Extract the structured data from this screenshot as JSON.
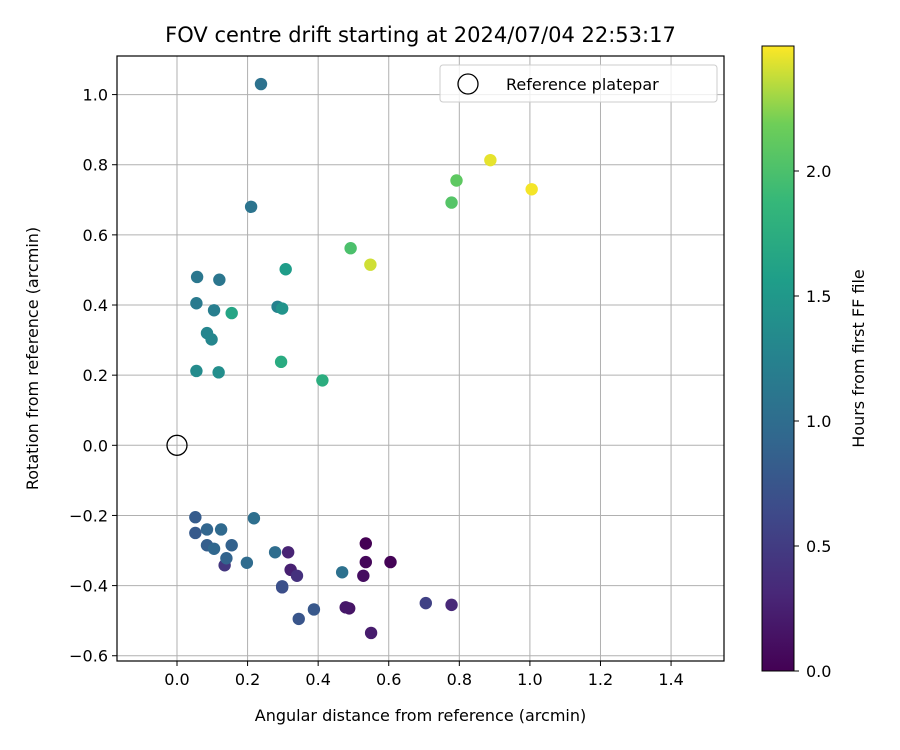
{
  "chart_data": {
    "type": "scatter",
    "title": "FOV centre drift starting at 2024/07/04 22:53:17",
    "xlabel": "Angular distance from reference (arcmin)",
    "ylabel": "Rotation from reference (arcmin)",
    "xlim": [
      -0.17,
      1.55
    ],
    "ylim": [
      -0.615,
      1.11
    ],
    "xticks": [
      0.0,
      0.2,
      0.4,
      0.6,
      0.8,
      1.0,
      1.2,
      1.4
    ],
    "xtick_labels": [
      "0.0",
      "0.2",
      "0.4",
      "0.6",
      "0.8",
      "1.0",
      "1.2",
      "1.4"
    ],
    "yticks": [
      -0.6,
      -0.4,
      -0.2,
      0.0,
      0.2,
      0.4,
      0.6,
      0.8,
      1.0
    ],
    "ytick_labels": [
      "−0.6",
      "−0.4",
      "−0.2",
      "0.0",
      "0.2",
      "0.4",
      "0.6",
      "0.8",
      "1.0"
    ],
    "grid": true,
    "colorbar": {
      "label": "Hours from first FF file",
      "colormap": "viridis",
      "range": [
        0.0,
        2.5
      ],
      "ticks": [
        0.0,
        0.5,
        1.0,
        1.5,
        2.0
      ],
      "tick_labels": [
        "0.0",
        "0.5",
        "1.0",
        "1.5",
        "2.0"
      ]
    },
    "reference": {
      "name": "Reference platepar",
      "x": 0.0,
      "y": 0.0
    },
    "legend": {
      "placement": "top-right",
      "entries": [
        "Reference platepar"
      ]
    },
    "points": [
      {
        "x": 0.535,
        "y": -0.28,
        "c": 0.0
      },
      {
        "x": 0.605,
        "y": -0.333,
        "c": 0.02
      },
      {
        "x": 0.535,
        "y": -0.333,
        "c": 0.05
      },
      {
        "x": 0.528,
        "y": -0.372,
        "c": 0.1
      },
      {
        "x": 0.488,
        "y": -0.465,
        "c": 0.15
      },
      {
        "x": 0.478,
        "y": -0.462,
        "c": 0.18
      },
      {
        "x": 0.55,
        "y": -0.535,
        "c": 0.22
      },
      {
        "x": 0.322,
        "y": -0.355,
        "c": 0.25
      },
      {
        "x": 0.315,
        "y": -0.305,
        "c": 0.28
      },
      {
        "x": 0.778,
        "y": -0.455,
        "c": 0.32
      },
      {
        "x": 0.34,
        "y": -0.372,
        "c": 0.4
      },
      {
        "x": 0.135,
        "y": -0.342,
        "c": 0.45
      },
      {
        "x": 0.705,
        "y": -0.45,
        "c": 0.55
      },
      {
        "x": 0.298,
        "y": -0.405,
        "c": 0.65
      },
      {
        "x": 0.298,
        "y": -0.402,
        "c": 0.7
      },
      {
        "x": 0.345,
        "y": -0.495,
        "c": 0.75
      },
      {
        "x": 0.388,
        "y": -0.468,
        "c": 0.78
      },
      {
        "x": 0.052,
        "y": -0.25,
        "c": 0.8
      },
      {
        "x": 0.052,
        "y": -0.205,
        "c": 0.82
      },
      {
        "x": 0.085,
        "y": -0.285,
        "c": 0.85
      },
      {
        "x": 0.155,
        "y": -0.285,
        "c": 0.88
      },
      {
        "x": 0.14,
        "y": -0.322,
        "c": 0.9
      },
      {
        "x": 0.085,
        "y": -0.24,
        "c": 0.92
      },
      {
        "x": 0.105,
        "y": -0.295,
        "c": 0.94
      },
      {
        "x": 0.125,
        "y": -0.24,
        "c": 0.96
      },
      {
        "x": 0.198,
        "y": -0.335,
        "c": 0.98
      },
      {
        "x": 0.278,
        "y": -0.305,
        "c": 1.0
      },
      {
        "x": 0.218,
        "y": -0.208,
        "c": 1.02
      },
      {
        "x": 0.468,
        "y": -0.362,
        "c": 1.04
      },
      {
        "x": 0.238,
        "y": 1.03,
        "c": 1.06
      },
      {
        "x": 0.21,
        "y": 0.68,
        "c": 1.08
      },
      {
        "x": 0.12,
        "y": 0.472,
        "c": 1.1
      },
      {
        "x": 0.057,
        "y": 0.48,
        "c": 1.12
      },
      {
        "x": 0.055,
        "y": 0.405,
        "c": 1.15
      },
      {
        "x": 0.105,
        "y": 0.385,
        "c": 1.2
      },
      {
        "x": 0.285,
        "y": 0.395,
        "c": 1.25
      },
      {
        "x": 0.085,
        "y": 0.32,
        "c": 1.28
      },
      {
        "x": 0.098,
        "y": 0.302,
        "c": 1.3
      },
      {
        "x": 0.055,
        "y": 0.212,
        "c": 1.35
      },
      {
        "x": 0.118,
        "y": 0.208,
        "c": 1.38
      },
      {
        "x": 0.298,
        "y": 0.39,
        "c": 1.45
      },
      {
        "x": 0.308,
        "y": 0.502,
        "c": 1.55
      },
      {
        "x": 0.155,
        "y": 0.377,
        "c": 1.65
      },
      {
        "x": 0.295,
        "y": 0.238,
        "c": 1.72
      },
      {
        "x": 0.412,
        "y": 0.185,
        "c": 1.75
      },
      {
        "x": 0.492,
        "y": 0.562,
        "c": 2.0
      },
      {
        "x": 0.778,
        "y": 0.692,
        "c": 2.05
      },
      {
        "x": 0.792,
        "y": 0.755,
        "c": 2.1
      },
      {
        "x": 0.548,
        "y": 0.515,
        "c": 2.4
      },
      {
        "x": 0.888,
        "y": 0.813,
        "c": 2.45
      },
      {
        "x": 1.005,
        "y": 0.73,
        "c": 2.48
      }
    ]
  }
}
